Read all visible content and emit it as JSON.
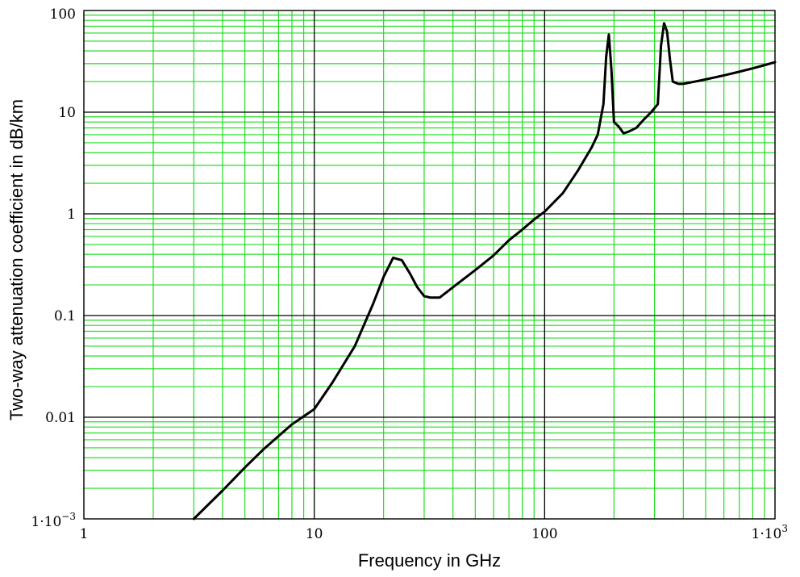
{
  "chart_data": {
    "type": "line",
    "title": "",
    "xlabel": "Frequency in GHz",
    "ylabel": "Two-way attenuation coefficient in dB/km",
    "x_scale": "log",
    "y_scale": "log",
    "xlim": [
      1,
      1000
    ],
    "ylim": [
      0.001,
      100
    ],
    "grid": true,
    "colors": {
      "minor_grid": "#22dd22",
      "major_grid": "#000000",
      "line": "#000000"
    },
    "x_ticks": [
      {
        "value": 1,
        "label": "1"
      },
      {
        "value": 10,
        "label": "10"
      },
      {
        "value": 100,
        "label": "100"
      },
      {
        "value": 1000,
        "mantissa": "1·10",
        "exponent": "3"
      }
    ],
    "y_ticks": [
      {
        "value": 0.001,
        "mantissa": "1·10",
        "exponent": "−3"
      },
      {
        "value": 0.01,
        "label": "0.01"
      },
      {
        "value": 0.1,
        "label": "0.1"
      },
      {
        "value": 1,
        "label": "1"
      },
      {
        "value": 10,
        "label": "10"
      },
      {
        "value": 100,
        "label": "100"
      }
    ],
    "series": [
      {
        "x": [
          3,
          4,
          5,
          6,
          8,
          10,
          12,
          15,
          18,
          20,
          22,
          24,
          26,
          28,
          30,
          32,
          35,
          40,
          50,
          60,
          70,
          80,
          90,
          100,
          120,
          140,
          160,
          170,
          180,
          185,
          190,
          195,
          200,
          210,
          220,
          230,
          250,
          270,
          290,
          310,
          320,
          330,
          340,
          350,
          360,
          380,
          400,
          450,
          500,
          600,
          700,
          800,
          900,
          1000
        ],
        "y": [
          0.001,
          0.0019,
          0.0032,
          0.0048,
          0.0085,
          0.012,
          0.022,
          0.05,
          0.13,
          0.24,
          0.37,
          0.35,
          0.26,
          0.19,
          0.155,
          0.15,
          0.15,
          0.19,
          0.28,
          0.39,
          0.55,
          0.7,
          0.88,
          1.05,
          1.6,
          2.7,
          4.5,
          6,
          12,
          35,
          58,
          26,
          8,
          7.2,
          6.2,
          6.4,
          7,
          8.5,
          10,
          12,
          45,
          75,
          62,
          33,
          20,
          19,
          19,
          20,
          21,
          23,
          25,
          27,
          29,
          31
        ]
      }
    ]
  }
}
